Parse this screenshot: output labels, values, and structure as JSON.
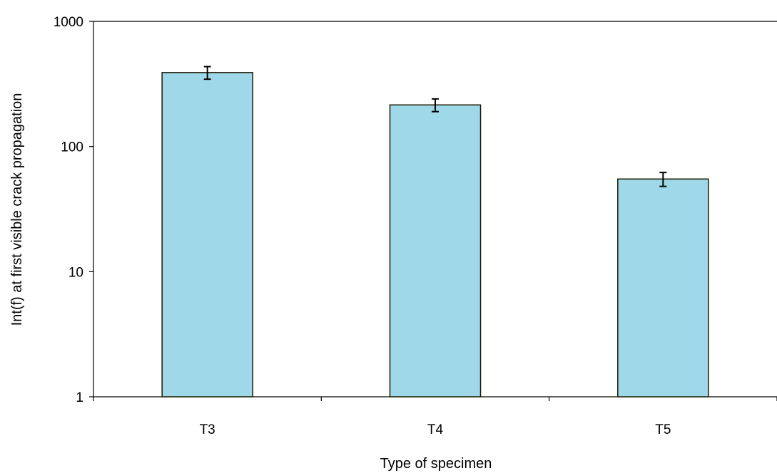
{
  "chart_data": {
    "type": "bar",
    "title": "",
    "xlabel": "Type of specimen",
    "ylabel": "Int(f) at first visible crack propagation",
    "yscale": "log",
    "ylim": [
      1,
      1000
    ],
    "yticks": [
      1,
      10,
      100,
      1000
    ],
    "yticklabels": [
      "1",
      "10",
      "100",
      "1000"
    ],
    "categories": [
      "T3",
      "T4",
      "T5"
    ],
    "values": [
      390,
      215,
      55
    ],
    "error_low": [
      345,
      190,
      48
    ],
    "error_high": [
      435,
      240,
      62
    ],
    "grid": false,
    "legend": "none",
    "colors": {
      "bar_fill": "#9fd8e8",
      "bar_stroke": "#1a1a00",
      "axis": "#000000",
      "error_bar": "#000000"
    }
  }
}
